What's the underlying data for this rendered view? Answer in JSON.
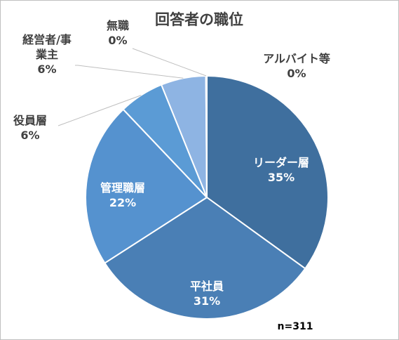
{
  "chart_data": {
    "type": "pie",
    "title": "回答者の職位",
    "annotation": "n=311",
    "slices": [
      {
        "name": "リーダー層",
        "value": 35,
        "label": "35%",
        "color": "#3f6f9e"
      },
      {
        "name": "平社員",
        "value": 31,
        "label": "31%",
        "color": "#4a7fb5"
      },
      {
        "name": "管理職層",
        "value": 22,
        "label": "22%",
        "color": "#5592cf"
      },
      {
        "name": "役員層",
        "value": 6,
        "label": "6%",
        "color": "#5b9bd5"
      },
      {
        "name": "経営者/事業主",
        "value": 6,
        "label": "6%",
        "color": "#8eb4e3"
      },
      {
        "name": "無職",
        "value": 0,
        "label": "0%",
        "color": "#c5d9f1"
      },
      {
        "name": "アルバイト等",
        "value": 0,
        "label": "0%",
        "color": "#dde8f5"
      }
    ]
  }
}
